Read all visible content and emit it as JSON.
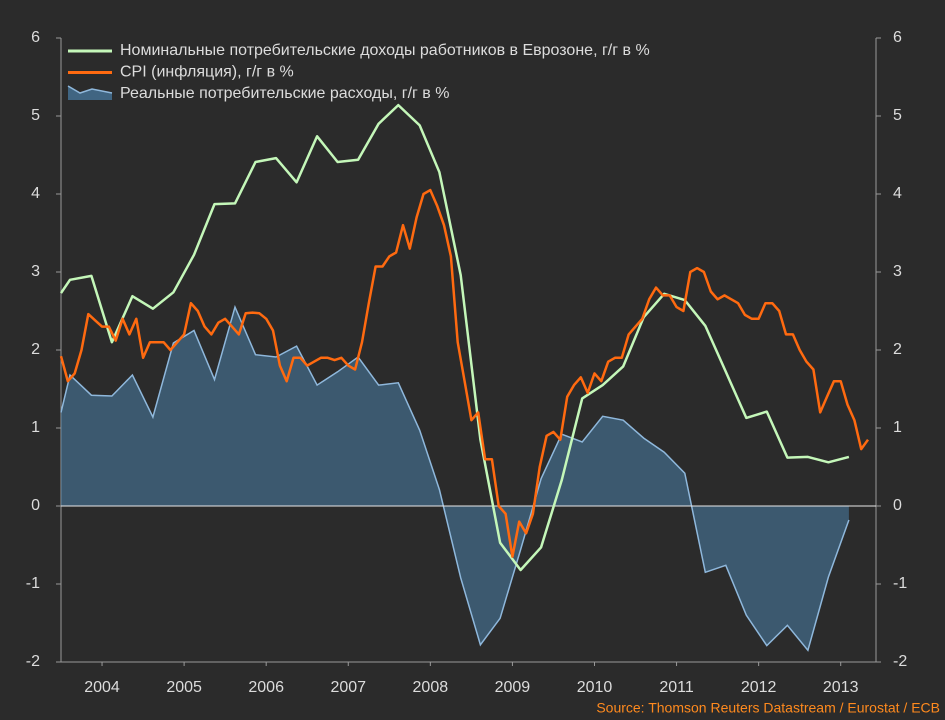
{
  "chart_data": {
    "type": "line",
    "source": "Source: Thomson Reuters Datastream / Eurostat / ECB",
    "xlim": [
      2004,
      2013.93
    ],
    "xticks": [
      {
        "value": 2004.5,
        "label": "2004"
      },
      {
        "value": 2005.5,
        "label": "2005"
      },
      {
        "value": 2006.5,
        "label": "2006"
      },
      {
        "value": 2007.5,
        "label": "2007"
      },
      {
        "value": 2008.5,
        "label": "2008"
      },
      {
        "value": 2009.5,
        "label": "2009"
      },
      {
        "value": 2010.5,
        "label": "2010"
      },
      {
        "value": 2011.5,
        "label": "2011"
      },
      {
        "value": 2012.5,
        "label": "2012"
      },
      {
        "value": 2013.5,
        "label": "2013"
      }
    ],
    "ylim": [
      -2,
      6
    ],
    "yticks": [
      -2,
      -1,
      0,
      1,
      2,
      3,
      4,
      5,
      6
    ],
    "y2lim": [
      -2,
      6
    ],
    "y2ticks": [
      -2,
      -1,
      0,
      1,
      2,
      3,
      4,
      5,
      6
    ],
    "legend": "upper left",
    "series": [
      {
        "name": "Номинальные потребительские доходы работников в Еврозоне, г/г в %",
        "color": "#c4f7b9",
        "kind": "line",
        "x": [
          2004.0,
          2004.11,
          2004.37,
          2004.62,
          2004.87,
          2005.12,
          2005.37,
          2005.62,
          2005.87,
          2006.12,
          2006.37,
          2006.62,
          2006.87,
          2007.12,
          2007.37,
          2007.62,
          2007.87,
          2008.11,
          2008.37,
          2008.61,
          2008.87,
          2009.11,
          2009.35,
          2009.6,
          2009.85,
          2010.1,
          2010.35,
          2010.6,
          2010.85,
          2011.1,
          2011.35,
          2011.6,
          2011.85,
          2012.1,
          2012.35,
          2012.6,
          2012.85,
          2013.1,
          2013.35,
          2013.6
        ],
        "values": [
          2.73,
          2.9,
          2.95,
          2.1,
          2.69,
          2.53,
          2.74,
          3.22,
          3.87,
          3.88,
          4.41,
          4.46,
          4.15,
          4.74,
          4.41,
          4.44,
          4.9,
          5.14,
          4.88,
          4.28,
          2.96,
          0.85,
          -0.47,
          -0.82,
          -0.53,
          0.33,
          1.38,
          1.55,
          1.79,
          2.42,
          2.72,
          2.64,
          2.31,
          1.72,
          1.13,
          1.21,
          0.62,
          0.63,
          0.56,
          0.63
        ]
      },
      {
        "name": "CPI (инфляция), г/г в %",
        "color": "#ff6a10",
        "kind": "line",
        "x": [
          2004.0,
          2004.083,
          2004.167,
          2004.25,
          2004.333,
          2004.417,
          2004.5,
          2004.583,
          2004.667,
          2004.75,
          2004.833,
          2004.917,
          2005.0,
          2005.083,
          2005.167,
          2005.25,
          2005.333,
          2005.417,
          2005.5,
          2005.583,
          2005.667,
          2005.75,
          2005.833,
          2005.917,
          2006.0,
          2006.083,
          2006.167,
          2006.25,
          2006.333,
          2006.417,
          2006.5,
          2006.583,
          2006.667,
          2006.75,
          2006.833,
          2006.917,
          2007.0,
          2007.083,
          2007.167,
          2007.25,
          2007.333,
          2007.417,
          2007.5,
          2007.583,
          2007.667,
          2007.75,
          2007.833,
          2007.917,
          2008.0,
          2008.083,
          2008.167,
          2008.25,
          2008.333,
          2008.417,
          2008.5,
          2008.583,
          2008.667,
          2008.75,
          2008.833,
          2008.917,
          2009.0,
          2009.083,
          2009.167,
          2009.25,
          2009.333,
          2009.417,
          2009.5,
          2009.583,
          2009.667,
          2009.75,
          2009.833,
          2009.917,
          2010.0,
          2010.083,
          2010.167,
          2010.25,
          2010.333,
          2010.417,
          2010.5,
          2010.583,
          2010.667,
          2010.75,
          2010.833,
          2010.917,
          2011.0,
          2011.083,
          2011.167,
          2011.25,
          2011.333,
          2011.417,
          2011.5,
          2011.583,
          2011.667,
          2011.75,
          2011.833,
          2011.917,
          2012.0,
          2012.083,
          2012.167,
          2012.25,
          2012.333,
          2012.417,
          2012.5,
          2012.583,
          2012.667,
          2012.75,
          2012.833,
          2012.917,
          2013.0,
          2013.083,
          2013.167,
          2013.25,
          2013.333,
          2013.417,
          2013.5,
          2013.583,
          2013.667,
          2013.75,
          2013.833
        ],
        "values": [
          1.92,
          1.6,
          1.7,
          2.0,
          2.46,
          2.38,
          2.3,
          2.3,
          2.12,
          2.4,
          2.2,
          2.4,
          1.9,
          2.1,
          2.1,
          2.1,
          2.0,
          2.1,
          2.2,
          2.6,
          2.5,
          2.3,
          2.2,
          2.35,
          2.4,
          2.3,
          2.2,
          2.47,
          2.48,
          2.47,
          2.4,
          2.25,
          1.8,
          1.6,
          1.9,
          1.9,
          1.8,
          1.85,
          1.9,
          1.9,
          1.87,
          1.9,
          1.8,
          1.75,
          2.1,
          2.6,
          3.07,
          3.07,
          3.2,
          3.25,
          3.6,
          3.3,
          3.7,
          4.0,
          4.05,
          3.85,
          3.6,
          3.2,
          2.1,
          1.6,
          1.1,
          1.2,
          0.6,
          0.6,
          0.0,
          -0.1,
          -0.65,
          -0.2,
          -0.35,
          -0.1,
          0.5,
          0.9,
          0.95,
          0.85,
          1.4,
          1.55,
          1.65,
          1.45,
          1.7,
          1.6,
          1.85,
          1.9,
          1.9,
          2.2,
          2.3,
          2.4,
          2.65,
          2.8,
          2.7,
          2.7,
          2.55,
          2.5,
          3.0,
          3.05,
          3.0,
          2.75,
          2.65,
          2.7,
          2.65,
          2.6,
          2.45,
          2.4,
          2.4,
          2.6,
          2.6,
          2.5,
          2.2,
          2.2,
          2.0,
          1.85,
          1.75,
          1.2,
          1.4,
          1.6,
          1.6,
          1.3,
          1.1,
          0.73,
          0.85
        ]
      },
      {
        "name": "Реальные потребительские расходы, г/г в %",
        "color": "#8fb8dc",
        "fill": "#4a7fa8",
        "kind": "area",
        "x": [
          2004.0,
          2004.11,
          2004.37,
          2004.62,
          2004.87,
          2005.12,
          2005.37,
          2005.62,
          2005.87,
          2006.12,
          2006.37,
          2006.62,
          2006.87,
          2007.12,
          2007.37,
          2007.62,
          2007.87,
          2008.11,
          2008.37,
          2008.61,
          2008.87,
          2009.11,
          2009.35,
          2009.6,
          2009.85,
          2010.1,
          2010.35,
          2010.6,
          2010.85,
          2011.1,
          2011.35,
          2011.6,
          2011.85,
          2012.1,
          2012.35,
          2012.6,
          2012.85,
          2013.1,
          2013.35,
          2013.6
        ],
        "values": [
          1.2,
          1.68,
          1.42,
          1.41,
          1.68,
          1.14,
          2.09,
          2.25,
          1.62,
          2.55,
          1.94,
          1.91,
          2.05,
          1.55,
          1.72,
          1.91,
          1.55,
          1.58,
          0.97,
          0.21,
          -0.92,
          -1.78,
          -1.44,
          -0.56,
          0.35,
          0.92,
          0.82,
          1.15,
          1.1,
          0.87,
          0.69,
          0.42,
          -0.85,
          -0.76,
          -1.4,
          -1.79,
          -1.53,
          -1.85,
          -0.91,
          -0.18
        ]
      }
    ]
  }
}
